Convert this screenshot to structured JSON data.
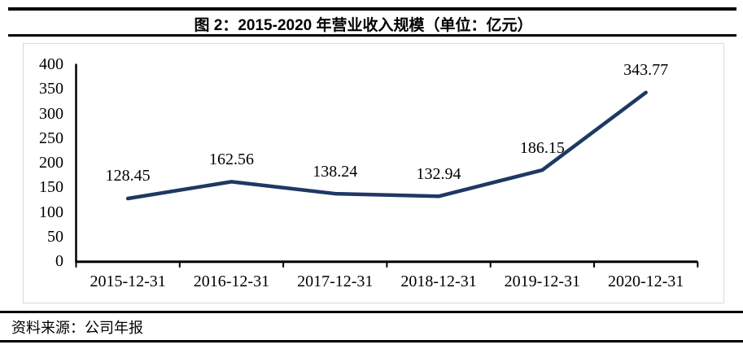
{
  "title": "图 2：2015-2020 年营业收入规模（单位：亿元）",
  "source_note": "资料来源：公司年报",
  "colors": {
    "line": "#1f3864",
    "axis": "#000000",
    "chart_border": "#d9d9d9"
  },
  "chart_data": {
    "type": "line",
    "title": "图 2：2015-2020 年营业收入规模（单位：亿元）",
    "categories": [
      "2015-12-31",
      "2016-12-31",
      "2017-12-31",
      "2018-12-31",
      "2019-12-31",
      "2020-12-31"
    ],
    "values": [
      128.45,
      162.56,
      138.24,
      132.94,
      186.15,
      343.77
    ],
    "data_labels": [
      "128.45",
      "162.56",
      "138.24",
      "132.94",
      "186.15",
      "343.77"
    ],
    "ylim": [
      0,
      400
    ],
    "ytick_step": 50,
    "yticks": [
      "400",
      "350",
      "300",
      "250",
      "200",
      "150",
      "100",
      "50",
      "0"
    ],
    "grid": false,
    "legend": null,
    "xlabel": "",
    "ylabel": ""
  }
}
